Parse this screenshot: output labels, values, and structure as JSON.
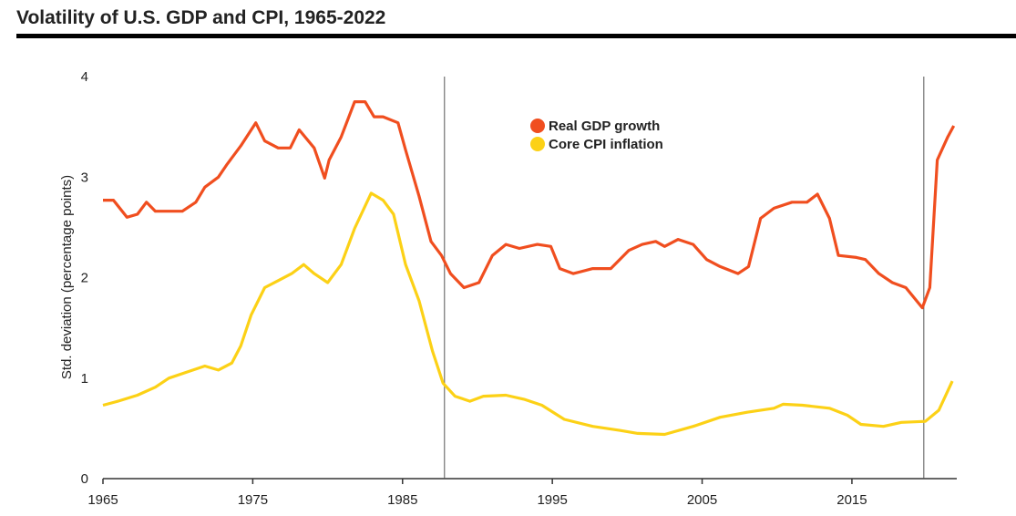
{
  "chart_data": {
    "type": "line",
    "title": "Volatility of U.S. GDP and CPI, 1965-2022",
    "y_label": "Std. deviation (percentage points)",
    "xlim": [
      1965,
      2022
    ],
    "ylim": [
      0,
      4
    ],
    "xticks": [
      1965,
      1975,
      1985,
      1995,
      2005,
      2015
    ],
    "yticks": [
      0,
      1,
      2,
      3,
      4
    ],
    "vlines": [
      1987.8,
      2019.8
    ],
    "series": [
      {
        "name": "Real GDP growth",
        "color": "#f04e1f",
        "x": [
          1965.0,
          1965.7,
          1966.6,
          1967.3,
          1967.9,
          1968.5,
          1969.4,
          1970.3,
          1971.2,
          1971.8,
          1972.7,
          1973.3,
          1974.2,
          1975.2,
          1975.8,
          1976.7,
          1977.5,
          1978.1,
          1979.1,
          1979.8,
          1980.1,
          1980.9,
          1981.8,
          1982.5,
          1983.1,
          1983.7,
          1984.7,
          1985.2,
          1986.1,
          1986.9,
          1987.6,
          1988.2,
          1989.1,
          1990.1,
          1991.0,
          1991.9,
          1992.8,
          1994.0,
          1994.9,
          1995.5,
          1996.4,
          1997.7,
          1998.9,
          2000.1,
          2001.0,
          2001.9,
          2002.5,
          2003.4,
          2004.4,
          2005.3,
          2006.2,
          2007.4,
          2008.1,
          2008.9,
          2009.8,
          2011.0,
          2012.0,
          2012.7,
          2013.5,
          2014.1,
          2015.3,
          2015.9,
          2016.8,
          2017.7,
          2018.6,
          2019.7,
          2020.2,
          2020.7,
          2021.4,
          2021.8
        ],
        "values": [
          2.77,
          2.77,
          2.6,
          2.63,
          2.75,
          2.66,
          2.66,
          2.66,
          2.75,
          2.9,
          3.0,
          3.13,
          3.31,
          3.54,
          3.36,
          3.29,
          3.29,
          3.47,
          3.29,
          2.99,
          3.17,
          3.4,
          3.75,
          3.75,
          3.6,
          3.6,
          3.54,
          3.27,
          2.81,
          2.36,
          2.22,
          2.04,
          1.9,
          1.95,
          2.22,
          2.33,
          2.29,
          2.33,
          2.31,
          2.09,
          2.04,
          2.09,
          2.09,
          2.27,
          2.33,
          2.36,
          2.31,
          2.38,
          2.33,
          2.18,
          2.11,
          2.04,
          2.11,
          2.59,
          2.69,
          2.75,
          2.75,
          2.83,
          2.59,
          2.22,
          2.2,
          2.18,
          2.04,
          1.95,
          1.9,
          1.7,
          1.9,
          3.17,
          3.4,
          3.51
        ]
      },
      {
        "name": "Core CPI inflation",
        "color": "#fcd116",
        "x": [
          1965.0,
          1966.0,
          1967.3,
          1968.5,
          1969.4,
          1970.6,
          1971.8,
          1972.7,
          1973.6,
          1974.2,
          1974.9,
          1975.8,
          1976.7,
          1977.6,
          1978.4,
          1979.1,
          1980.0,
          1980.9,
          1981.8,
          1982.9,
          1983.7,
          1984.4,
          1985.2,
          1986.1,
          1987.0,
          1987.7,
          1988.5,
          1989.5,
          1990.4,
          1991.9,
          1993.1,
          1994.3,
          1995.8,
          1997.7,
          1999.5,
          2000.7,
          2002.5,
          2004.4,
          2006.2,
          2008.0,
          2009.8,
          2010.4,
          2011.7,
          2013.5,
          2014.7,
          2015.6,
          2017.1,
          2018.3,
          2019.9,
          2020.8,
          2021.7
        ],
        "values": [
          0.73,
          0.77,
          0.83,
          0.91,
          1.0,
          1.06,
          1.12,
          1.08,
          1.15,
          1.32,
          1.63,
          1.9,
          1.97,
          2.04,
          2.13,
          2.04,
          1.95,
          2.13,
          2.49,
          2.84,
          2.77,
          2.63,
          2.13,
          1.77,
          1.27,
          0.95,
          0.82,
          0.77,
          0.82,
          0.83,
          0.79,
          0.73,
          0.59,
          0.52,
          0.48,
          0.45,
          0.44,
          0.52,
          0.61,
          0.66,
          0.7,
          0.74,
          0.73,
          0.7,
          0.63,
          0.54,
          0.52,
          0.56,
          0.57,
          0.68,
          0.97
        ]
      }
    ]
  }
}
